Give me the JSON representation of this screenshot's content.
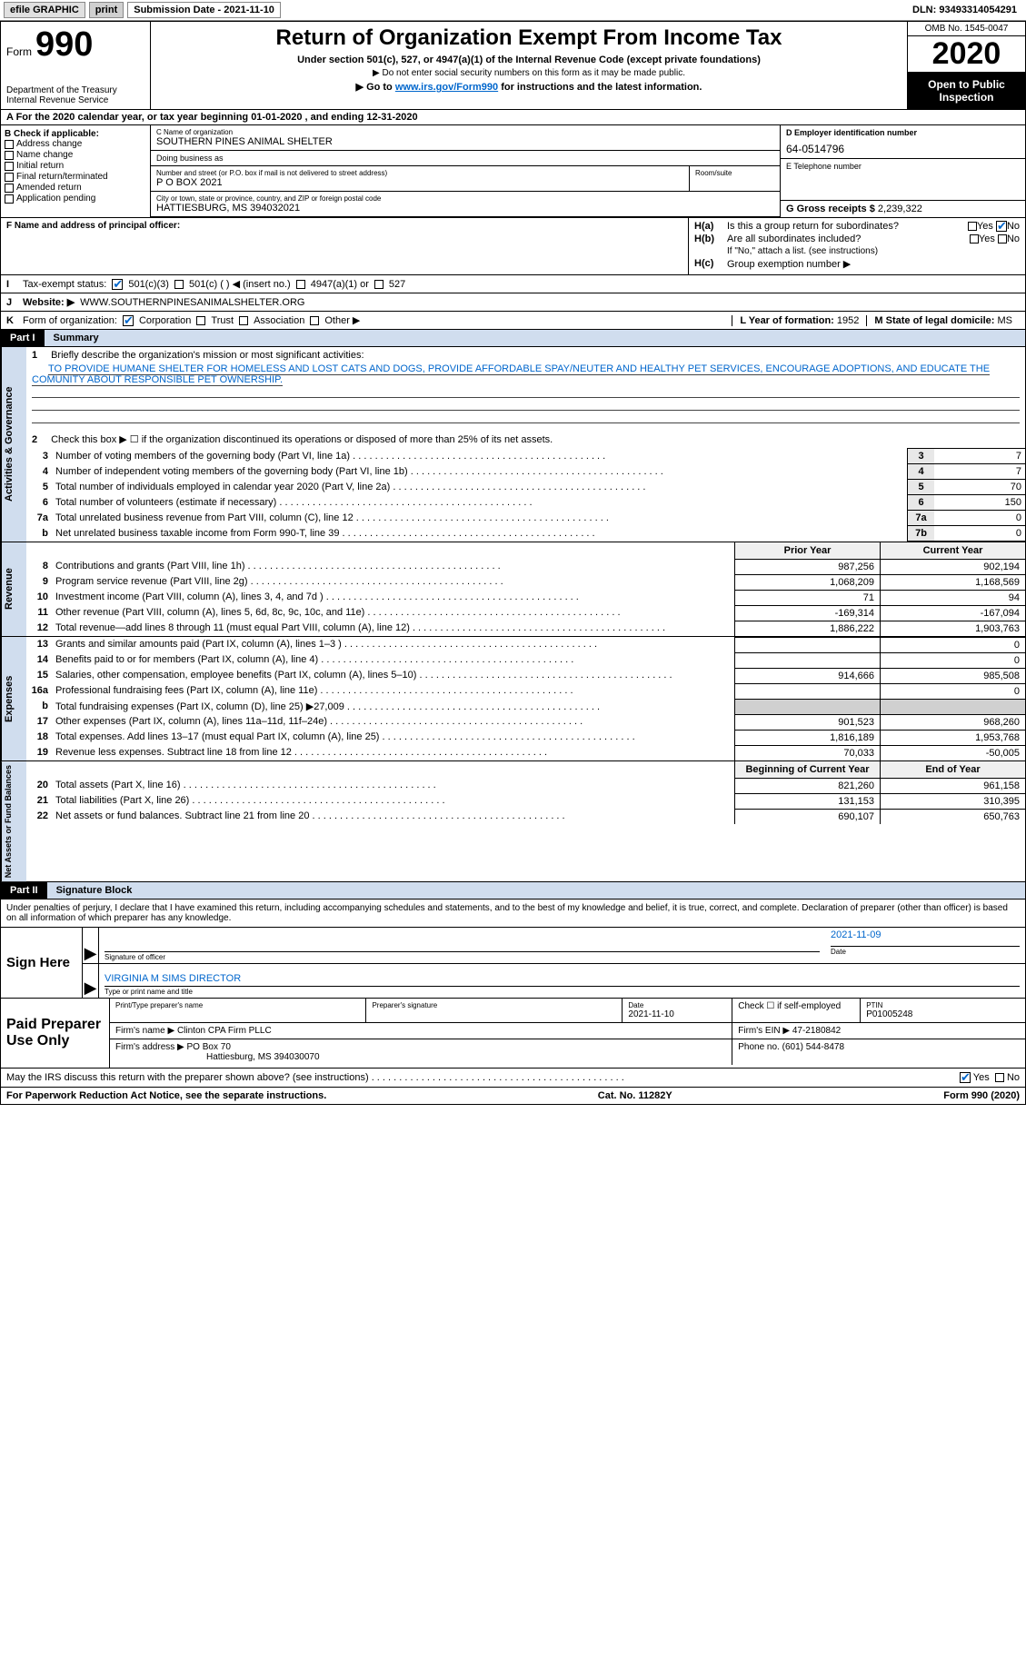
{
  "topbar": {
    "efile": "efile GRAPHIC",
    "print": "print",
    "submission_label": "Submission Date - 2021-11-10",
    "dln": "DLN: 93493314054291"
  },
  "header": {
    "form_word": "Form",
    "form_num": "990",
    "dept": "Department of the Treasury\nInternal Revenue Service",
    "title": "Return of Organization Exempt From Income Tax",
    "sub": "Under section 501(c), 527, or 4947(a)(1) of the Internal Revenue Code (except private foundations)",
    "sub2": "▶ Do not enter social security numbers on this form as it may be made public.",
    "link_line_pre": "▶ Go to ",
    "link_line_link": "www.irs.gov/Form990",
    "link_line_post": " for instructions and the latest information.",
    "omb": "OMB No. 1545-0047",
    "year": "2020",
    "open": "Open to Public Inspection"
  },
  "period": "A For the 2020 calendar year, or tax year beginning 01-01-2020   , and ending 12-31-2020",
  "checkboxes": {
    "b_label": "B Check if applicable:",
    "items": [
      "Address change",
      "Name change",
      "Initial return",
      "Final return/terminated",
      "Amended return",
      "Application pending"
    ]
  },
  "org": {
    "c_label": "C Name of organization",
    "name": "SOUTHERN PINES ANIMAL SHELTER",
    "dba_label": "Doing business as",
    "addr_label": "Number and street (or P.O. box if mail is not delivered to street address)",
    "room_label": "Room/suite",
    "addr": "P O BOX 2021",
    "city_label": "City or town, state or province, country, and ZIP or foreign postal code",
    "city": "HATTIESBURG, MS  394032021",
    "f_label": "F Name and address of principal officer:"
  },
  "rightcol": {
    "d_label": "D Employer identification number",
    "ein": "64-0514796",
    "e_label": "E Telephone number",
    "g_label": "G Gross receipts $",
    "g_val": "2,239,322"
  },
  "h": {
    "a": "Is this a group return for subordinates?",
    "b": "Are all subordinates included?",
    "b_note": "If \"No,\" attach a list. (see instructions)",
    "c": "Group exemption number ▶",
    "yes": "Yes",
    "no": "No"
  },
  "i_row": {
    "lead": "I",
    "label": "Tax-exempt status:",
    "opts": [
      "501(c)(3)",
      "501(c) (  ) ◀ (insert no.)",
      "4947(a)(1) or",
      "527"
    ]
  },
  "j_row": {
    "lead": "J",
    "label": "Website: ▶",
    "val": "WWW.SOUTHERNPINESANIMALSHELTER.ORG"
  },
  "k_row": {
    "lead": "K",
    "label": "Form of organization:",
    "opts": [
      "Corporation",
      "Trust",
      "Association",
      "Other ▶"
    ]
  },
  "l_m": {
    "l_label": "L Year of formation:",
    "l_val": "1952",
    "m_label": "M State of legal domicile:",
    "m_val": "MS"
  },
  "part1": {
    "tag": "Part I",
    "title": "Summary"
  },
  "mission": {
    "n1": "1",
    "label": "Briefly describe the organization's mission or most significant activities:",
    "text": "TO PROVIDE HUMANE SHELTER FOR HOMELESS AND LOST CATS AND DOGS, PROVIDE AFFORDABLE SPAY/NEUTER AND HEALTHY PET SERVICES, ENCOURAGE ADOPTIONS, AND EDUCATE THE COMUNITY ABOUT RESPONSIBLE PET OWNERSHIP."
  },
  "gov_lines": [
    {
      "n": "2",
      "t": "Check this box ▶ ☐ if the organization discontinued its operations or disposed of more than 25% of its net assets."
    },
    {
      "n": "3",
      "t": "Number of voting members of the governing body (Part VI, line 1a)",
      "box": "3",
      "v": "7"
    },
    {
      "n": "4",
      "t": "Number of independent voting members of the governing body (Part VI, line 1b)",
      "box": "4",
      "v": "7"
    },
    {
      "n": "5",
      "t": "Total number of individuals employed in calendar year 2020 (Part V, line 2a)",
      "box": "5",
      "v": "70"
    },
    {
      "n": "6",
      "t": "Total number of volunteers (estimate if necessary)",
      "box": "6",
      "v": "150"
    },
    {
      "n": "7a",
      "t": "Total unrelated business revenue from Part VIII, column (C), line 12",
      "box": "7a",
      "v": "0"
    },
    {
      "n": "b",
      "t": "Net unrelated business taxable income from Form 990-T, line 39",
      "box": "7b",
      "v": "0"
    }
  ],
  "col_hdr": {
    "prior": "Prior Year",
    "current": "Current Year",
    "beg": "Beginning of Current Year",
    "end": "End of Year"
  },
  "revenue": [
    {
      "n": "8",
      "t": "Contributions and grants (Part VIII, line 1h)",
      "p": "987,256",
      "c": "902,194"
    },
    {
      "n": "9",
      "t": "Program service revenue (Part VIII, line 2g)",
      "p": "1,068,209",
      "c": "1,168,569"
    },
    {
      "n": "10",
      "t": "Investment income (Part VIII, column (A), lines 3, 4, and 7d )",
      "p": "71",
      "c": "94"
    },
    {
      "n": "11",
      "t": "Other revenue (Part VIII, column (A), lines 5, 6d, 8c, 9c, 10c, and 11e)",
      "p": "-169,314",
      "c": "-167,094"
    },
    {
      "n": "12",
      "t": "Total revenue—add lines 8 through 11 (must equal Part VIII, column (A), line 12)",
      "p": "1,886,222",
      "c": "1,903,763"
    }
  ],
  "expenses": [
    {
      "n": "13",
      "t": "Grants and similar amounts paid (Part IX, column (A), lines 1–3 )",
      "p": "",
      "c": "0"
    },
    {
      "n": "14",
      "t": "Benefits paid to or for members (Part IX, column (A), line 4)",
      "p": "",
      "c": "0"
    },
    {
      "n": "15",
      "t": "Salaries, other compensation, employee benefits (Part IX, column (A), lines 5–10)",
      "p": "914,666",
      "c": "985,508"
    },
    {
      "n": "16a",
      "t": "Professional fundraising fees (Part IX, column (A), line 11e)",
      "p": "",
      "c": "0"
    },
    {
      "n": "b",
      "t": "Total fundraising expenses (Part IX, column (D), line 25) ▶27,009",
      "p": "shade",
      "c": "shade"
    },
    {
      "n": "17",
      "t": "Other expenses (Part IX, column (A), lines 11a–11d, 11f–24e)",
      "p": "901,523",
      "c": "968,260"
    },
    {
      "n": "18",
      "t": "Total expenses. Add lines 13–17 (must equal Part IX, column (A), line 25)",
      "p": "1,816,189",
      "c": "1,953,768"
    },
    {
      "n": "19",
      "t": "Revenue less expenses. Subtract line 18 from line 12",
      "p": "70,033",
      "c": "-50,005"
    }
  ],
  "netassets": [
    {
      "n": "20",
      "t": "Total assets (Part X, line 16)",
      "p": "821,260",
      "c": "961,158"
    },
    {
      "n": "21",
      "t": "Total liabilities (Part X, line 26)",
      "p": "131,153",
      "c": "310,395"
    },
    {
      "n": "22",
      "t": "Net assets or fund balances. Subtract line 21 from line 20",
      "p": "690,107",
      "c": "650,763"
    }
  ],
  "part2": {
    "tag": "Part II",
    "title": "Signature Block"
  },
  "penalty": "Under penalties of perjury, I declare that I have examined this return, including accompanying schedules and statements, and to the best of my knowledge and belief, it is true, correct, and complete. Declaration of preparer (other than officer) is based on all information of which preparer has any knowledge.",
  "sign": {
    "here": "Sign Here",
    "sig_label": "Signature of officer",
    "date_label": "Date",
    "date_val": "2021-11-09",
    "name": "VIRGINIA M SIMS  DIRECTOR",
    "name_label": "Type or print name and title"
  },
  "preparer": {
    "title": "Paid Preparer Use Only",
    "h1": "Print/Type preparer's name",
    "h2": "Preparer's signature",
    "h3_lbl": "Date",
    "h3_val": "2021-11-10",
    "h4": "Check ☐ if self-employed",
    "h5_lbl": "PTIN",
    "h5_val": "P01005248",
    "firm_name_lbl": "Firm's name    ▶",
    "firm_name": "Clinton CPA Firm PLLC",
    "firm_ein_lbl": "Firm's EIN ▶",
    "firm_ein": "47-2180842",
    "firm_addr_lbl": "Firm's address ▶",
    "firm_addr": "PO Box 70",
    "firm_city": "Hattiesburg, MS  394030070",
    "phone_lbl": "Phone no.",
    "phone": "(601) 544-8478"
  },
  "discuss": {
    "q": "May the IRS discuss this return with the preparer shown above? (see instructions)",
    "yes": "Yes",
    "no": "No"
  },
  "footer": {
    "left": "For Paperwork Reduction Act Notice, see the separate instructions.",
    "mid": "Cat. No. 11282Y",
    "right": "Form 990 (2020)"
  },
  "vtabs": {
    "gov": "Activities & Governance",
    "rev": "Revenue",
    "exp": "Expenses",
    "net": "Net Assets or Fund Balances"
  }
}
